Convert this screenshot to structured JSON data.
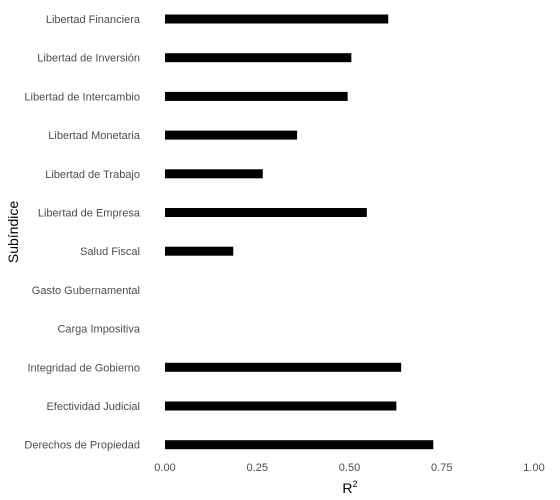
{
  "chart_data": {
    "type": "bar",
    "orientation": "horizontal",
    "categories": [
      "Libertad Financiera",
      "Libertad de Inversión",
      "Libertad de Intercambio",
      "Libertad Monetaria",
      "Libertad de Trabajo",
      "Libertad de Empresa",
      "Salud Fiscal",
      "Gasto Gubernamental",
      "Carga Impositiva",
      "Integridad de Gobierno",
      "Efectividad Judicial",
      "Derechos de Propiedad"
    ],
    "values": [
      0.605,
      0.505,
      0.495,
      0.358,
      0.265,
      0.547,
      0.185,
      0,
      0,
      0.64,
      0.627,
      0.727
    ],
    "xlabel": "R",
    "xlabel_superscript": "2",
    "ylabel": "Subíndice",
    "xlim": [
      0,
      1
    ],
    "xticks": [
      "0.00",
      "0.25",
      "0.50",
      "0.75",
      "1.00"
    ],
    "xtick_values": [
      0,
      0.25,
      0.5,
      0.75,
      1
    ],
    "bar_color": "#000000",
    "grid": false,
    "legend": "none"
  }
}
